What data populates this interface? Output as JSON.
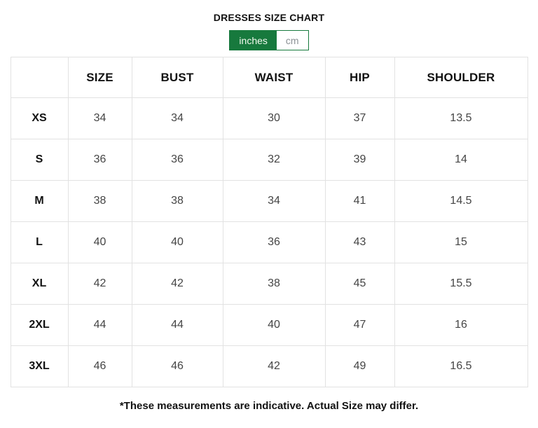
{
  "page": {
    "title": "DRESSES SIZE CHART",
    "footnote": "*These measurements are indicative. Actual Size may differ."
  },
  "unit_toggle": {
    "options": [
      {
        "label": "inches",
        "selected": true
      },
      {
        "label": "cm",
        "selected": false
      }
    ]
  },
  "size_chart": {
    "type": "table",
    "unit": "inches",
    "columns": [
      "",
      "SIZE",
      "BUST",
      "WAIST",
      "HIP",
      "SHOULDER"
    ],
    "rows": [
      {
        "label": "XS",
        "values": [
          "34",
          "34",
          "30",
          "37",
          "13.5"
        ]
      },
      {
        "label": "S",
        "values": [
          "36",
          "36",
          "32",
          "39",
          "14"
        ]
      },
      {
        "label": "M",
        "values": [
          "38",
          "38",
          "34",
          "41",
          "14.5"
        ]
      },
      {
        "label": "L",
        "values": [
          "40",
          "40",
          "36",
          "43",
          "15"
        ]
      },
      {
        "label": "XL",
        "values": [
          "42",
          "42",
          "38",
          "45",
          "15.5"
        ]
      },
      {
        "label": "2XL",
        "values": [
          "44",
          "44",
          "40",
          "47",
          "16"
        ]
      },
      {
        "label": "3XL",
        "values": [
          "46",
          "46",
          "42",
          "49",
          "16.5"
        ]
      }
    ]
  },
  "colors": {
    "accent_green": "#17793d",
    "toggle_inactive_text": "#8b9195",
    "table_border": "#e2e2e2",
    "heading_text": "#121212",
    "cell_text": "#454545"
  }
}
